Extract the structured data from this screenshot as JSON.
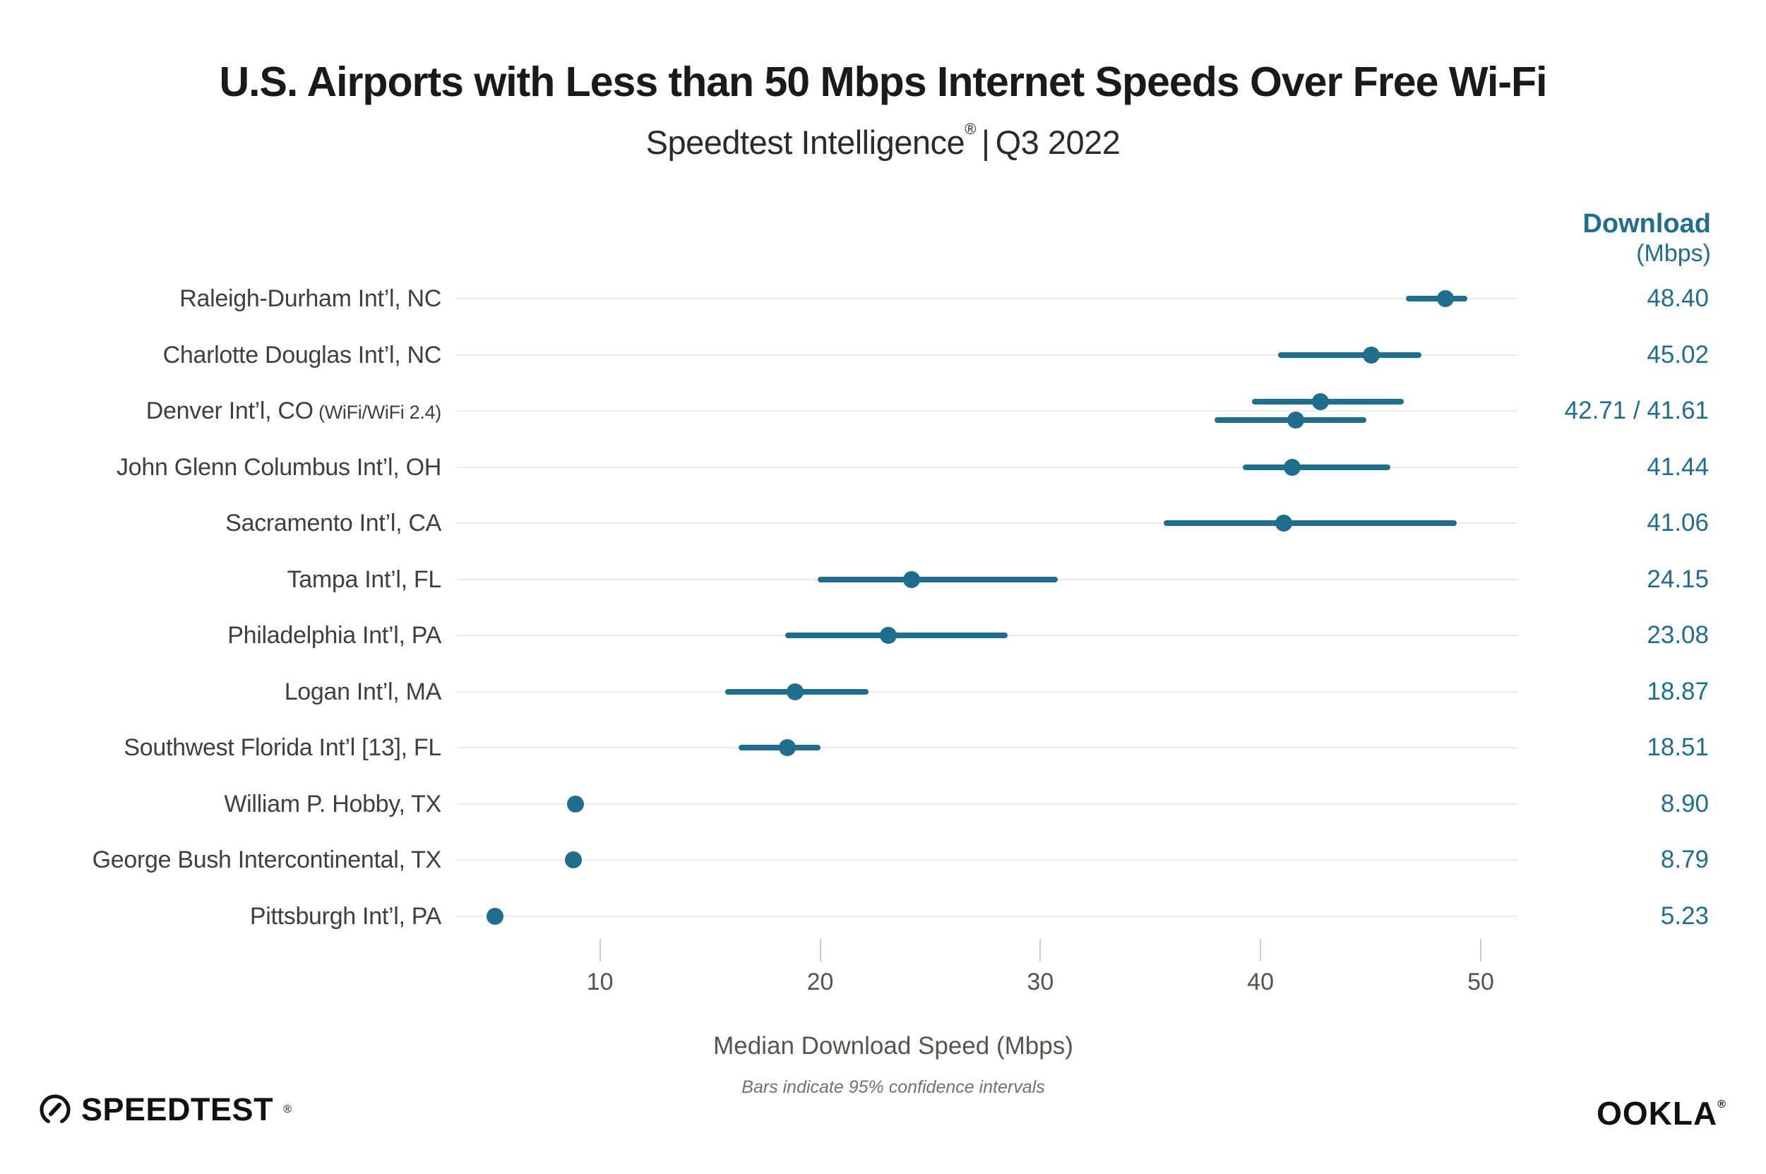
{
  "title": "U.S. Airports with Less than 50 Mbps Internet Speeds Over Free Wi-Fi",
  "subtitle": {
    "brand": "Speedtest Intelligence",
    "registered": "®",
    "separator": "|",
    "period": "Q3 2022"
  },
  "value_column": {
    "header": "Download",
    "unit": "(Mbps)"
  },
  "x_axis": {
    "label": "Median Download Speed (Mbps)",
    "ticks": [
      10,
      20,
      30,
      40,
      50
    ]
  },
  "footnote": "Bars indicate 95% confidence intervals",
  "footer": {
    "speedtest_logo_text": "SPEEDTEST",
    "speedtest_registered": "®",
    "ookla_logo_text": "OOKLA",
    "ookla_registered": "®"
  },
  "colors": {
    "accent": "#206E8D",
    "title_text": "#1A1A1A",
    "label_text": "#3F3F3F",
    "tick_text": "#57534E",
    "gridline": "#EBEBF2",
    "footnote_text": "#717171",
    "logo_black": "#111111"
  },
  "chart_data": {
    "type": "scatter",
    "title": "U.S. Airports with Less than 50 Mbps Internet Speeds Over Free Wi-Fi",
    "subtitle": "Speedtest Intelligence® | Q3 2022",
    "xlabel": "Median Download Speed (Mbps)",
    "x_ticks": [
      10,
      20,
      30,
      40,
      50
    ],
    "xlim": [
      3.5,
      51.7
    ],
    "legend": "none",
    "grid": "horizontal-row-lines",
    "note": "Bars indicate 95% confidence intervals; dot = median download speed, horizontal bar = 95% CI",
    "rows": [
      {
        "label": "Raleigh-Durham Int’l, NC",
        "label_note": "",
        "value_label": "48.40",
        "points": [
          {
            "value": 48.4,
            "ci_low": 46.6,
            "ci_high": 49.4
          }
        ]
      },
      {
        "label": "Charlotte Douglas Int’l, NC",
        "label_note": "",
        "value_label": "45.02",
        "points": [
          {
            "value": 45.02,
            "ci_low": 40.8,
            "ci_high": 47.3
          }
        ]
      },
      {
        "label": "Denver Int’l, CO",
        "label_note": "(WiFi/WiFi 2.4)",
        "value_label": "42.71 / 41.61",
        "points": [
          {
            "value": 42.71,
            "ci_low": 39.6,
            "ci_high": 46.5
          },
          {
            "value": 41.61,
            "ci_low": 37.9,
            "ci_high": 44.8
          }
        ]
      },
      {
        "label": "John Glenn Columbus Int’l, OH",
        "label_note": "",
        "value_label": "41.44",
        "points": [
          {
            "value": 41.44,
            "ci_low": 39.2,
            "ci_high": 45.9
          }
        ]
      },
      {
        "label": "Sacramento Int’l, CA",
        "label_note": "",
        "value_label": "41.06",
        "points": [
          {
            "value": 41.06,
            "ci_low": 35.6,
            "ci_high": 48.9
          }
        ]
      },
      {
        "label": "Tampa Int’l, FL",
        "label_note": "",
        "value_label": "24.15",
        "points": [
          {
            "value": 24.15,
            "ci_low": 19.9,
            "ci_high": 30.8
          }
        ]
      },
      {
        "label": "Philadelphia Int’l, PA",
        "label_note": "",
        "value_label": "23.08",
        "points": [
          {
            "value": 23.08,
            "ci_low": 18.4,
            "ci_high": 28.5
          }
        ]
      },
      {
        "label": "Logan Int’l, MA",
        "label_note": "",
        "value_label": "18.87",
        "points": [
          {
            "value": 18.87,
            "ci_low": 15.7,
            "ci_high": 22.2
          }
        ]
      },
      {
        "label": "Southwest Florida Int’l [13], FL",
        "label_note": "",
        "value_label": "18.51",
        "points": [
          {
            "value": 18.51,
            "ci_low": 16.3,
            "ci_high": 20.0
          }
        ]
      },
      {
        "label": "William P. Hobby, TX",
        "label_note": "",
        "value_label": "8.90",
        "points": [
          {
            "value": 8.9,
            "ci_low": 8.7,
            "ci_high": 9.1
          }
        ]
      },
      {
        "label": "George Bush Intercontinental, TX",
        "label_note": "",
        "value_label": "8.79",
        "points": [
          {
            "value": 8.79,
            "ci_low": 8.6,
            "ci_high": 9.0
          }
        ]
      },
      {
        "label": "Pittsburgh Int’l, PA",
        "label_note": "",
        "value_label": "5.23",
        "points": [
          {
            "value": 5.23,
            "ci_low": 5.1,
            "ci_high": 5.4
          }
        ]
      }
    ]
  }
}
